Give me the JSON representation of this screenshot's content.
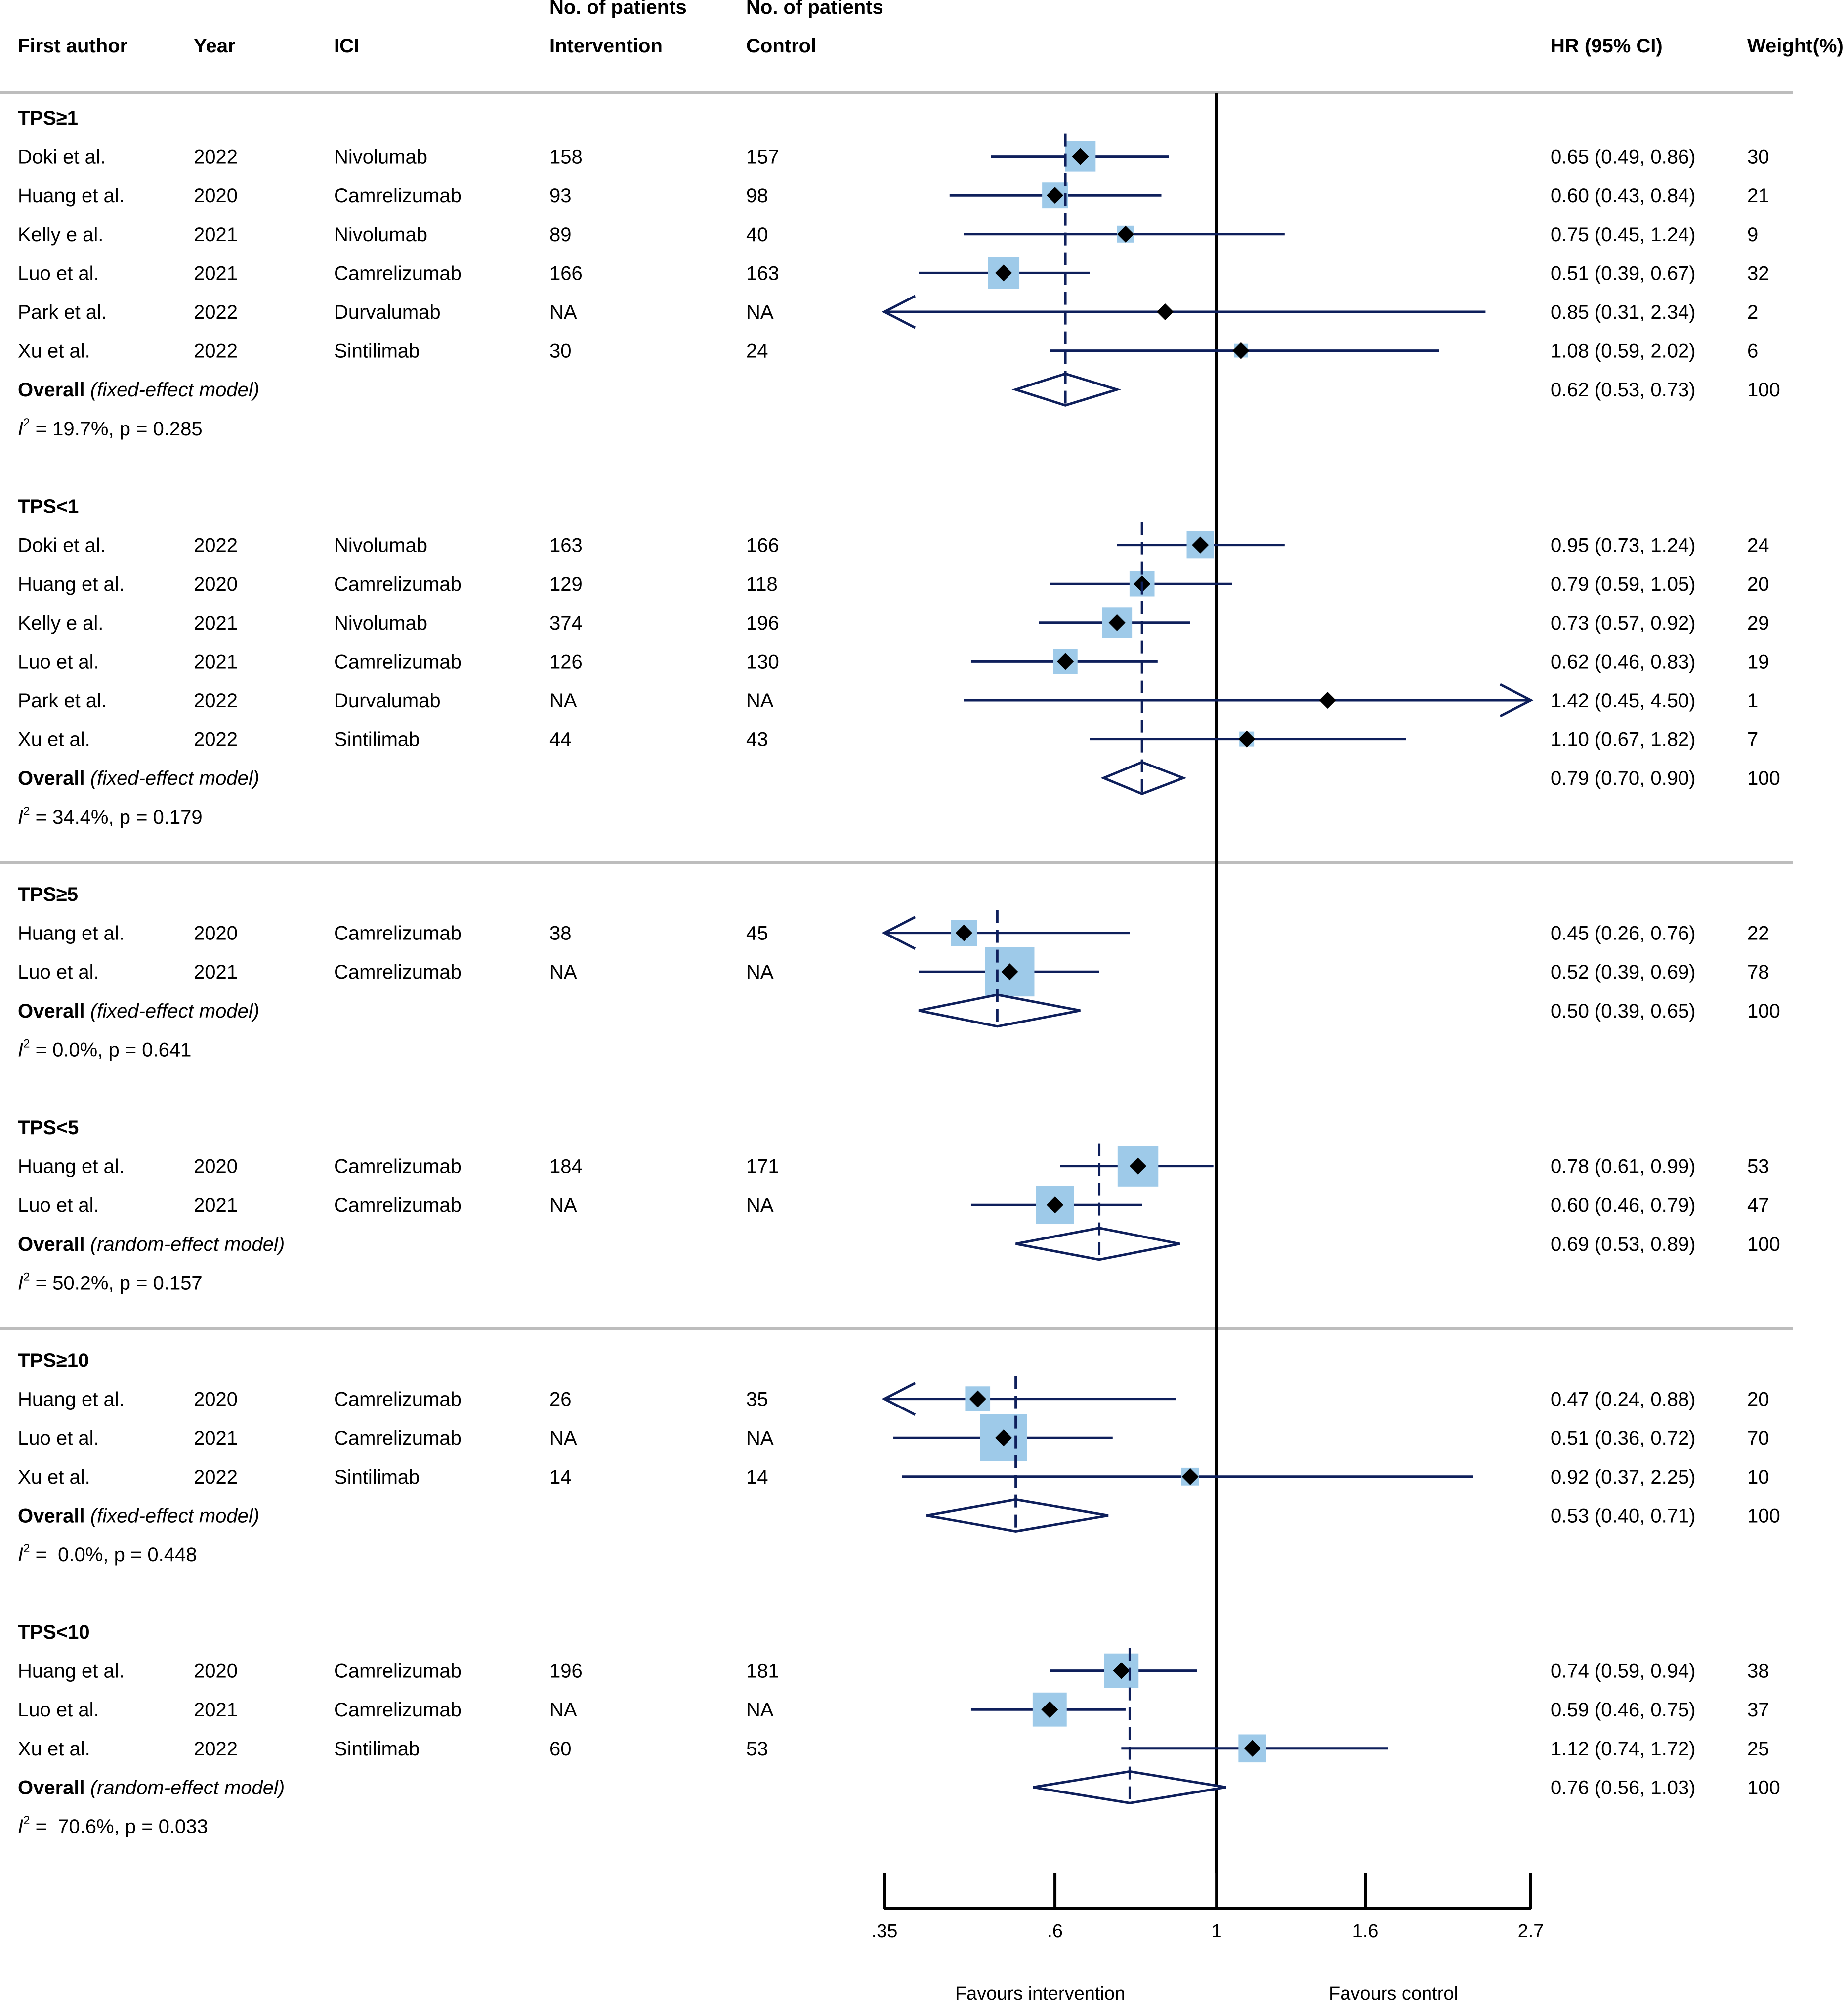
{
  "header": {
    "col_author": "First author",
    "col_year": "Year",
    "col_ici": "ICI",
    "col_intervention_top": "No. of patients",
    "col_intervention": "Intervention",
    "col_control_top": "No. of patients",
    "col_control": "Control",
    "col_hr": "HR (95% CI)",
    "col_weight": "Weight(%)"
  },
  "colors": {
    "line": "#0e1f5b",
    "box": "#9ecae9",
    "diamond_fill": "#ffffff",
    "axis": "#000000",
    "separator": "#bdbdbd"
  },
  "chart_data": {
    "type": "forest",
    "scale": "log",
    "xlim": [
      0.35,
      2.7
    ],
    "xticks": [
      {
        "value": 0.35,
        "label": ".35"
      },
      {
        "value": 0.6,
        "label": ".6"
      },
      {
        "value": 1,
        "label": "1"
      },
      {
        "value": 1.6,
        "label": "1.6"
      },
      {
        "value": 2.7,
        "label": "2.7"
      }
    ],
    "xlabel_left": "Favours intervention",
    "xlabel_right": "Favours control",
    "reference_line": 1,
    "subgroups": [
      {
        "name": "TPS≥1",
        "studies": [
          {
            "author": "Doki et al.",
            "year": "2022",
            "ici": "Nivolumab",
            "n_int": "158",
            "n_ctrl": "157",
            "hr": 0.65,
            "lo": 0.49,
            "hi": 0.86,
            "hr_text": "0.65 (0.49, 0.86)",
            "weight": 30,
            "weight_text": "30"
          },
          {
            "author": "Huang et al.",
            "year": "2020",
            "ici": "Camrelizumab",
            "n_int": "93",
            "n_ctrl": "98",
            "hr": 0.6,
            "lo": 0.43,
            "hi": 0.84,
            "hr_text": "0.60 (0.43, 0.84)",
            "weight": 21,
            "weight_text": "21"
          },
          {
            "author": "Kelly e al.",
            "year": "2021",
            "ici": "Nivolumab",
            "n_int": "89",
            "n_ctrl": "40",
            "hr": 0.75,
            "lo": 0.45,
            "hi": 1.24,
            "hr_text": "0.75 (0.45, 1.24)",
            "weight": 9,
            "weight_text": "9"
          },
          {
            "author": "Luo et al.",
            "year": "2021",
            "ici": "Camrelizumab",
            "n_int": "166",
            "n_ctrl": "163",
            "hr": 0.51,
            "lo": 0.39,
            "hi": 0.67,
            "hr_text": "0.51 (0.39, 0.67)",
            "weight": 32,
            "weight_text": "32"
          },
          {
            "author": "Park et al.",
            "year": "2022",
            "ici": "Durvalumab",
            "n_int": "NA",
            "n_ctrl": "NA",
            "hr": 0.85,
            "lo": 0.31,
            "hi": 2.34,
            "hr_text": "0.85 (0.31, 2.34)",
            "weight": 2,
            "weight_text": "2"
          },
          {
            "author": "Xu et al.",
            "year": "2022",
            "ici": "Sintilimab",
            "n_int": "30",
            "n_ctrl": "24",
            "hr": 1.08,
            "lo": 0.59,
            "hi": 2.02,
            "hr_text": "1.08 (0.59, 2.02)",
            "weight": 6,
            "weight_text": "6"
          }
        ],
        "overall": {
          "label": "Overall",
          "model": "(fixed-effect model)",
          "hr": 0.62,
          "lo": 0.53,
          "hi": 0.73,
          "hr_text": "0.62 (0.53, 0.73)",
          "weight_text": "100"
        },
        "heterogeneity": {
          "i2_symbol": "I",
          "i2_sup": "2",
          "rest": " = 19.7%, p = 0.285"
        }
      },
      {
        "name": "TPS<1",
        "studies": [
          {
            "author": "Doki et al.",
            "year": "2022",
            "ici": "Nivolumab",
            "n_int": "163",
            "n_ctrl": "166",
            "hr": 0.95,
            "lo": 0.73,
            "hi": 1.24,
            "hr_text": "0.95 (0.73, 1.24)",
            "weight": 24,
            "weight_text": "24"
          },
          {
            "author": "Huang et al.",
            "year": "2020",
            "ici": "Camrelizumab",
            "n_int": "129",
            "n_ctrl": "118",
            "hr": 0.79,
            "lo": 0.59,
            "hi": 1.05,
            "hr_text": "0.79 (0.59, 1.05)",
            "weight": 20,
            "weight_text": "20"
          },
          {
            "author": "Kelly e al.",
            "year": "2021",
            "ici": "Nivolumab",
            "n_int": "374",
            "n_ctrl": "196",
            "hr": 0.73,
            "lo": 0.57,
            "hi": 0.92,
            "hr_text": "0.73 (0.57, 0.92)",
            "weight": 29,
            "weight_text": "29"
          },
          {
            "author": "Luo et al.",
            "year": "2021",
            "ici": "Camrelizumab",
            "n_int": "126",
            "n_ctrl": "130",
            "hr": 0.62,
            "lo": 0.46,
            "hi": 0.83,
            "hr_text": "0.62 (0.46, 0.83)",
            "weight": 19,
            "weight_text": "19"
          },
          {
            "author": "Park et al.",
            "year": "2022",
            "ici": "Durvalumab",
            "n_int": "NA",
            "n_ctrl": "NA",
            "hr": 1.42,
            "lo": 0.45,
            "hi": 4.5,
            "hr_text": "1.42 (0.45, 4.50)",
            "weight": 1,
            "weight_text": "1"
          },
          {
            "author": "Xu et al.",
            "year": "2022",
            "ici": "Sintilimab",
            "n_int": "44",
            "n_ctrl": "43",
            "hr": 1.1,
            "lo": 0.67,
            "hi": 1.82,
            "hr_text": "1.10 (0.67, 1.82)",
            "weight": 7,
            "weight_text": "7"
          }
        ],
        "overall": {
          "label": "Overall",
          "model": "(fixed-effect model)",
          "hr": 0.79,
          "lo": 0.7,
          "hi": 0.9,
          "hr_text": "0.79 (0.70, 0.90)",
          "weight_text": "100"
        },
        "heterogeneity": {
          "i2_symbol": "I",
          "i2_sup": "2",
          "rest": " = 34.4%, p = 0.179"
        }
      },
      {
        "name": "TPS≥5",
        "studies": [
          {
            "author": "Huang et al.",
            "year": "2020",
            "ici": "Camrelizumab",
            "n_int": "38",
            "n_ctrl": "45",
            "hr": 0.45,
            "lo": 0.26,
            "hi": 0.76,
            "hr_text": "0.45 (0.26, 0.76)",
            "weight": 22,
            "weight_text": "22"
          },
          {
            "author": "Luo et al.",
            "year": "2021",
            "ici": "Camrelizumab",
            "n_int": "NA",
            "n_ctrl": "NA",
            "hr": 0.52,
            "lo": 0.39,
            "hi": 0.69,
            "hr_text": "0.52 (0.39, 0.69)",
            "weight": 78,
            "weight_text": "78"
          }
        ],
        "overall": {
          "label": "Overall",
          "model": "(fixed-effect model)",
          "hr": 0.5,
          "lo": 0.39,
          "hi": 0.65,
          "hr_text": "0.50 (0.39, 0.65)",
          "weight_text": "100"
        },
        "heterogeneity": {
          "i2_symbol": "I",
          "i2_sup": "2",
          "rest": " = 0.0%, p = 0.641"
        }
      },
      {
        "name": "TPS<5",
        "studies": [
          {
            "author": "Huang et al.",
            "year": "2020",
            "ici": "Camrelizumab",
            "n_int": "184",
            "n_ctrl": "171",
            "hr": 0.78,
            "lo": 0.61,
            "hi": 0.99,
            "hr_text": "0.78 (0.61, 0.99)",
            "weight": 53,
            "weight_text": "53"
          },
          {
            "author": "Luo et al.",
            "year": "2021",
            "ici": "Camrelizumab",
            "n_int": "NA",
            "n_ctrl": "NA",
            "hr": 0.6,
            "lo": 0.46,
            "hi": 0.79,
            "hr_text": "0.60 (0.46, 0.79)",
            "weight": 47,
            "weight_text": "47"
          }
        ],
        "overall": {
          "label": "Overall",
          "model": "(random-effect model)",
          "hr": 0.69,
          "lo": 0.53,
          "hi": 0.89,
          "hr_text": "0.69 (0.53, 0.89)",
          "weight_text": "100"
        },
        "heterogeneity": {
          "i2_symbol": "I",
          "i2_sup": "2",
          "rest": " = 50.2%, p = 0.157"
        }
      },
      {
        "name": "TPS≥10",
        "studies": [
          {
            "author": "Huang et al.",
            "year": "2020",
            "ici": "Camrelizumab",
            "n_int": "26",
            "n_ctrl": "35",
            "hr": 0.47,
            "lo": 0.24,
            "hi": 0.88,
            "hr_text": "0.47 (0.24, 0.88)",
            "weight": 20,
            "weight_text": "20"
          },
          {
            "author": "Luo et al.",
            "year": "2021",
            "ici": "Camrelizumab",
            "n_int": "NA",
            "n_ctrl": "NA",
            "hr": 0.51,
            "lo": 0.36,
            "hi": 0.72,
            "hr_text": "0.51 (0.36, 0.72)",
            "weight": 70,
            "weight_text": "70"
          },
          {
            "author": "Xu et al.",
            "year": "2022",
            "ici": "Sintilimab",
            "n_int": "14",
            "n_ctrl": "14",
            "hr": 0.92,
            "lo": 0.37,
            "hi": 2.25,
            "hr_text": "0.92 (0.37, 2.25)",
            "weight": 10,
            "weight_text": "10"
          }
        ],
        "overall": {
          "label": "Overall",
          "model": "(fixed-effect model)",
          "hr": 0.53,
          "lo": 0.4,
          "hi": 0.71,
          "hr_text": "0.53 (0.40, 0.71)",
          "weight_text": "100"
        },
        "heterogeneity": {
          "i2_symbol": "I",
          "i2_sup": "2",
          "rest": " =  0.0%, p = 0.448"
        }
      },
      {
        "name": "TPS<10",
        "studies": [
          {
            "author": "Huang et al.",
            "year": "2020",
            "ici": "Camrelizumab",
            "n_int": "196",
            "n_ctrl": "181",
            "hr": 0.74,
            "lo": 0.59,
            "hi": 0.94,
            "hr_text": "0.74 (0.59, 0.94)",
            "weight": 38,
            "weight_text": "38"
          },
          {
            "author": "Luo et al.",
            "year": "2021",
            "ici": "Camrelizumab",
            "n_int": "NA",
            "n_ctrl": "NA",
            "hr": 0.59,
            "lo": 0.46,
            "hi": 0.75,
            "hr_text": "0.59 (0.46, 0.75)",
            "weight": 37,
            "weight_text": "37"
          },
          {
            "author": "Xu et al.",
            "year": "2022",
            "ici": "Sintilimab",
            "n_int": "60",
            "n_ctrl": "53",
            "hr": 1.12,
            "lo": 0.74,
            "hi": 1.72,
            "hr_text": "1.12 (0.74, 1.72)",
            "weight": 25,
            "weight_text": "25"
          }
        ],
        "overall": {
          "label": "Overall",
          "model": "(random-effect model)",
          "hr": 0.76,
          "lo": 0.56,
          "hi": 1.03,
          "hr_text": "0.76 (0.56, 1.03)",
          "weight_text": "100"
        },
        "heterogeneity": {
          "i2_symbol": "I",
          "i2_sup": "2",
          "rest": " =  70.6%, p = 0.033"
        }
      }
    ]
  }
}
